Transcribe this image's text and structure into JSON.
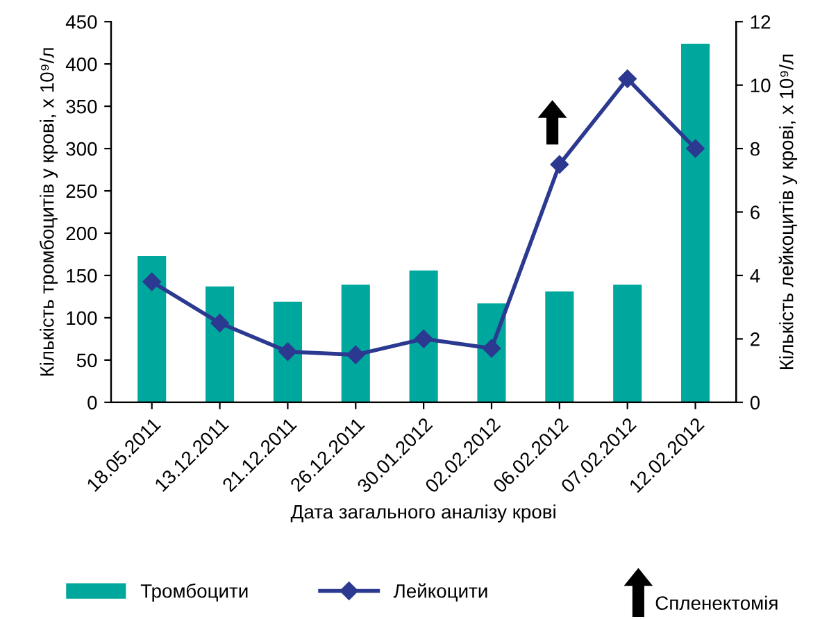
{
  "chart_data": {
    "type": "bar",
    "xlabel": "Дата загального аналізу крові",
    "ylabel": "Кількість тромбоцитів у крові, x 10⁹/л",
    "y2label": "Кількість лейкоцитів у крові, x 10⁹/л",
    "categories": [
      "18.05.2011",
      "13.12.2011",
      "21.12.2011",
      "26.12.2011",
      "30.01.2012",
      "02.02.2012",
      "06.02.2012",
      "07.02.2012",
      "12.02.2012"
    ],
    "series": [
      {
        "name": "Тромбоцити",
        "color": "#00a79d",
        "values": [
          173,
          137,
          119,
          139,
          156,
          117,
          131,
          139,
          424
        ]
      },
      {
        "name": "Лейкоцити",
        "type": "line",
        "axis": "y2",
        "color": "#2b3990",
        "values": [
          3.8,
          2.5,
          1.6,
          1.5,
          2.0,
          1.7,
          7.5,
          10.2,
          8.0
        ]
      }
    ],
    "ylim": [
      0,
      450
    ],
    "yticks": [
      0,
      50,
      100,
      150,
      200,
      250,
      300,
      350,
      400,
      450
    ],
    "y2lim": [
      0,
      12
    ],
    "y2ticks": [
      0,
      2,
      4,
      6,
      8,
      10,
      12
    ],
    "marker": "diamond",
    "line_style": "solid",
    "grid": false,
    "legend": "bottom",
    "annotations": [
      "Спленектомія"
    ]
  }
}
